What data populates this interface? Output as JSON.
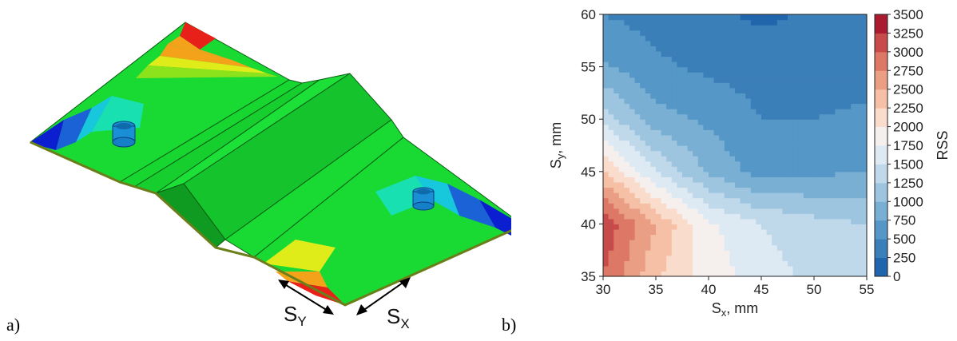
{
  "panel_a": {
    "label": "a)",
    "dimension_sy": {
      "base": "S",
      "sub": "Y"
    },
    "dimension_sx": {
      "base": "S",
      "sub": "X"
    }
  },
  "panel_b": {
    "label": "b)"
  },
  "colors": {
    "red": "#e8201a",
    "orange": "#f5a21b",
    "yellow": "#e0ec1a",
    "lime": "#8de31b",
    "green": "#19d933",
    "teal": "#18e0b0",
    "cyan": "#17c8dc",
    "blue": "#1b62d6",
    "navy": "#0c1fd0"
  },
  "chart_data": {
    "type": "heatmap",
    "xlabel": {
      "base": "S",
      "sub": "x",
      "rest": ", mm"
    },
    "ylabel": {
      "base": "S",
      "sub": "y",
      "rest": ", mm"
    },
    "colorbar_label": "RSS",
    "xlim": [
      30,
      55
    ],
    "ylim": [
      35,
      60
    ],
    "xticks": [
      "30",
      "35",
      "40",
      "45",
      "50",
      "55"
    ],
    "yticks": [
      "35",
      "40",
      "45",
      "50",
      "55",
      "60"
    ],
    "colorbar_ticks": [
      "0",
      "250",
      "500",
      "750",
      "1000",
      "1250",
      "1500",
      "1750",
      "2000",
      "2250",
      "2500",
      "2750",
      "3000",
      "3250",
      "3500"
    ],
    "colormap": "RdBu_r",
    "x": [
      30,
      35,
      40,
      45,
      50,
      55
    ],
    "y": [
      35,
      40,
      45,
      50,
      55,
      60
    ],
    "z": [
      [
        3000,
        2300,
        1900,
        1600,
        1450,
        1400
      ],
      [
        3200,
        2500,
        1800,
        1500,
        1350,
        1250
      ],
      [
        2300,
        1500,
        950,
        650,
        700,
        750
      ],
      [
        1400,
        850,
        700,
        500,
        500,
        550
      ],
      [
        800,
        550,
        450,
        400,
        380,
        400
      ],
      [
        500,
        400,
        300,
        200,
        280,
        350
      ]
    ]
  }
}
